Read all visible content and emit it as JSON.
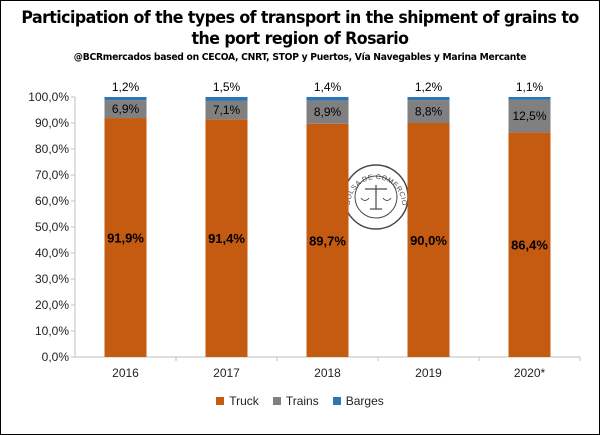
{
  "title": "Participation of the types of transport in the shipment of grains to the port region of Rosario",
  "subtitle": "@BCRmercados based on CECOA, CNRT, STOP y Puertos, Vía Navegables y Marina Mercante",
  "colors": {
    "truck": "#c55a11",
    "trains": "#808080",
    "barges": "#2e75b6"
  },
  "chart_data": {
    "type": "bar",
    "stacked": true,
    "categories": [
      "2016",
      "2017",
      "2018",
      "2019",
      "2020*"
    ],
    "series": [
      {
        "name": "Truck",
        "values": [
          91.9,
          91.4,
          89.7,
          90.0,
          86.4
        ],
        "labels": [
          "91,9%",
          "91,4%",
          "89,7%",
          "90,0%",
          "86,4%"
        ]
      },
      {
        "name": "Trains",
        "values": [
          6.9,
          7.1,
          8.9,
          8.8,
          12.5
        ],
        "labels": [
          "6,9%",
          "7,1%",
          "8,9%",
          "8,8%",
          "12,5%"
        ]
      },
      {
        "name": "Barges",
        "values": [
          1.2,
          1.5,
          1.4,
          1.2,
          1.1
        ],
        "labels": [
          "1,2%",
          "1,5%",
          "1,4%",
          "1,2%",
          "1,1%"
        ]
      }
    ],
    "ylim": [
      0,
      100
    ],
    "yticks": [
      "0,0%",
      "10,0%",
      "20,0%",
      "30,0%",
      "40,0%",
      "50,0%",
      "60,0%",
      "70,0%",
      "80,0%",
      "90,0%",
      "100,0%"
    ],
    "grid": false,
    "legend": "bottom",
    "watermark": "BOLSA DE COMERCIO DE ROSARIO"
  }
}
